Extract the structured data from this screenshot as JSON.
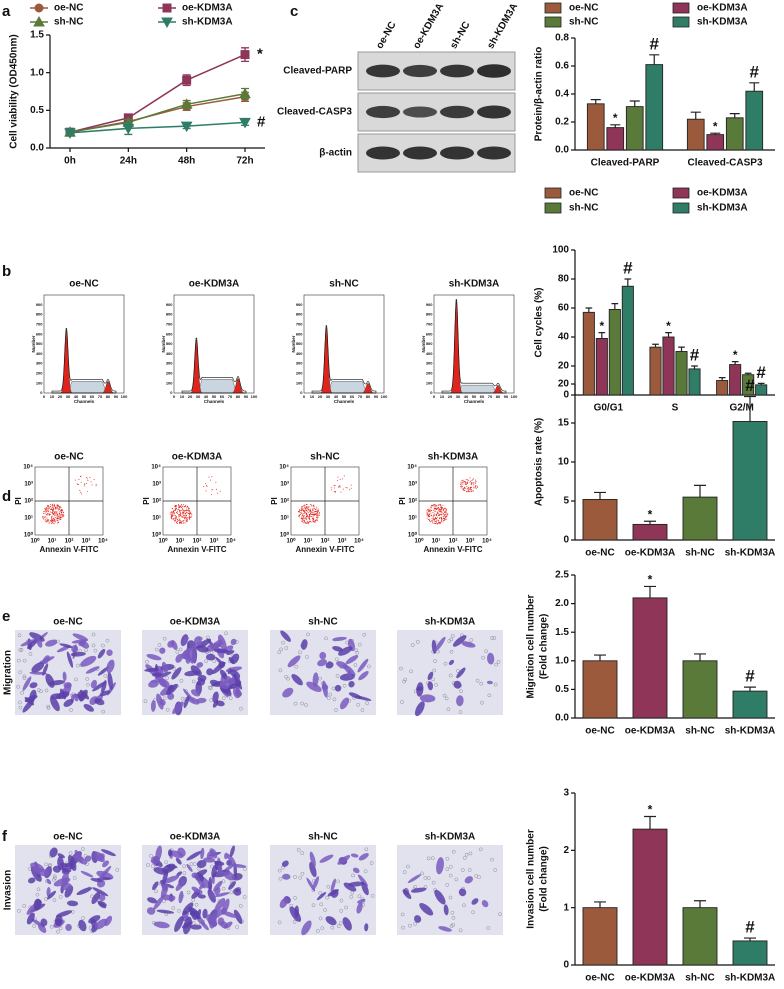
{
  "panel_labels": [
    "a",
    "b",
    "c",
    "d",
    "e",
    "f"
  ],
  "blot": {
    "lanes": [
      "oe-NC",
      "oe-KDM3A",
      "sh-NC",
      "sh-KDM3A"
    ],
    "rows": [
      "Cleaved-PARP",
      "Cleaved-CASP3",
      "β-actin"
    ]
  },
  "flow_histograms": {
    "titles": [
      "oe-NC",
      "oe-KDM3A",
      "sh-NC",
      "sh-KDM3A"
    ],
    "xlabel": "Channels",
    "ylabel": "Number",
    "xticks": [
      0,
      10,
      20,
      30,
      40,
      50,
      60,
      70,
      80,
      90,
      100
    ],
    "yticks": [
      0,
      100,
      200,
      300,
      400,
      500,
      600,
      700,
      800,
      900
    ]
  },
  "flow_scatter": {
    "titles": [
      "oe-NC",
      "oe-KDM3A",
      "sh-NC",
      "sh-KDM3A"
    ],
    "xlabel": "Annexin V-FITC",
    "ylabel": "PI",
    "ticks": [
      "10⁰",
      "10¹",
      "10²",
      "10³",
      "10⁴"
    ]
  },
  "transwell": [
    {
      "label": "Migration",
      "titles": [
        "oe-NC",
        "oe-KDM3A",
        "sh-NC",
        "sh-KDM3A"
      ]
    },
    {
      "label": "Invasion",
      "titles": [
        "oe-NC",
        "oe-KDM3A",
        "sh-NC",
        "sh-KDM3A"
      ]
    }
  ],
  "chart_data": [
    {
      "type": "line",
      "ylabel": "Cell viability (OD450nm)",
      "categories": [
        "0h",
        "24h",
        "48h",
        "72h"
      ],
      "ylim": [
        0,
        1.5
      ],
      "yticks": [
        {
          "value": 0,
          "label": "0.0"
        },
        0.5,
        {
          "value": 1,
          "label": "1.0"
        },
        1.5
      ],
      "series": [
        {
          "name": "oe-NC",
          "color": "#9c5a3c",
          "marker": "circle",
          "values": [
            0.21,
            0.35,
            0.55,
            0.68
          ],
          "errors": [
            0.03,
            0.04,
            0.05,
            0.06
          ]
        },
        {
          "name": "oe-KDM3A",
          "color": "#8e3558",
          "marker": "square",
          "values": [
            0.21,
            0.4,
            0.9,
            1.24
          ],
          "errors": [
            0.03,
            0.04,
            0.07,
            0.09
          ],
          "significance": [
            null,
            null,
            null,
            "*"
          ]
        },
        {
          "name": "sh-NC",
          "color": "#5a7a3a",
          "marker": "triangle",
          "values": [
            0.21,
            0.34,
            0.58,
            0.72
          ],
          "errors": [
            0.03,
            0.04,
            0.05,
            0.07
          ]
        },
        {
          "name": "sh-KDM3A",
          "color": "#2f7c67",
          "marker": "triangle-down",
          "values": [
            0.2,
            0.26,
            0.29,
            0.34
          ],
          "errors": [
            0.03,
            0.08,
            0.03,
            0.04
          ],
          "significance": [
            null,
            null,
            null,
            "#"
          ]
        }
      ]
    },
    {
      "type": "bar",
      "ylabel": "Protein/β-actin ratio",
      "categories": [
        "Cleaved-PARP",
        "Cleaved-CASP3"
      ],
      "ylim": [
        0,
        0.8
      ],
      "yticks": [
        {
          "value": 0,
          "label": "0.0"
        },
        0.2,
        0.4,
        0.6,
        0.8
      ],
      "series": [
        {
          "name": "oe-NC",
          "color": "#9c5a3c",
          "values": [
            0.33,
            0.22
          ],
          "errors": [
            0.03,
            0.05
          ]
        },
        {
          "name": "oe-KDM3A",
          "color": "#8e3558",
          "values": [
            0.16,
            0.11
          ],
          "errors": [
            0.02,
            0.01
          ],
          "significance": [
            "*",
            "*"
          ]
        },
        {
          "name": "sh-NC",
          "color": "#5a7a3a",
          "values": [
            0.31,
            0.23
          ],
          "errors": [
            0.04,
            0.03
          ]
        },
        {
          "name": "sh-KDM3A",
          "color": "#2f7c67",
          "values": [
            0.61,
            0.42
          ],
          "errors": [
            0.07,
            0.06
          ],
          "significance": [
            "#",
            "#"
          ]
        }
      ]
    },
    {
      "type": "bar",
      "ylabel": "Cell cycles (%)",
      "categories": [
        "G0/G1",
        "S",
        "G2/M"
      ],
      "ylim": [
        0,
        100
      ],
      "yticks": [
        0,
        20,
        40,
        60,
        80,
        100
      ],
      "series": [
        {
          "name": "oe-NC",
          "color": "#9c5a3c",
          "values": [
            57,
            33,
            10
          ],
          "errors": [
            3,
            2,
            2
          ]
        },
        {
          "name": "oe-KDM3A",
          "color": "#8e3558",
          "values": [
            39,
            40,
            21
          ],
          "errors": [
            4,
            3,
            2
          ],
          "significance": [
            "*",
            "*",
            "*"
          ]
        },
        {
          "name": "sh-NC",
          "color": "#5a7a3a",
          "values": [
            59,
            30,
            14
          ],
          "errors": [
            4,
            3,
            1
          ]
        },
        {
          "name": "sh-KDM3A",
          "color": "#2f7c67",
          "values": [
            75,
            18,
            7
          ],
          "errors": [
            5,
            2,
            1
          ],
          "significance": [
            "#",
            "#",
            "#"
          ]
        }
      ]
    },
    {
      "type": "bar",
      "ylabel": "Apoptosis rate (%)",
      "categories": [
        "oe-NC",
        "oe-KDM3A",
        "sh-NC",
        "sh-KDM3A"
      ],
      "values": [
        5.2,
        2.0,
        5.5,
        15.2
      ],
      "errors": [
        0.9,
        0.4,
        1.5,
        3.2
      ],
      "significance": [
        null,
        "*",
        null,
        "#"
      ],
      "colors": [
        "#9c5a3c",
        "#8e3558",
        "#5a7a3a",
        "#2f7c67"
      ],
      "ylim": [
        0,
        20
      ],
      "yticks": [
        0,
        5,
        10,
        15,
        20
      ]
    },
    {
      "type": "bar",
      "ylabel": [
        "Migration cell number",
        "(Fold change)"
      ],
      "categories": [
        "oe-NC",
        "oe-KDM3A",
        "sh-NC",
        "sh-KDM3A"
      ],
      "values": [
        1.0,
        2.1,
        1.0,
        0.47
      ],
      "errors": [
        0.1,
        0.2,
        0.12,
        0.07
      ],
      "significance": [
        null,
        "*",
        null,
        "#"
      ],
      "colors": [
        "#9c5a3c",
        "#8e3558",
        "#5a7a3a",
        "#2f7c67"
      ],
      "ylim": [
        0,
        2.5
      ],
      "yticks": [
        {
          "value": 0,
          "label": "0.0"
        },
        0.5,
        {
          "value": 1,
          "label": "1.0"
        },
        1.5,
        {
          "value": 2,
          "label": "2.0"
        },
        2.5
      ]
    },
    {
      "type": "bar",
      "ylabel": [
        "Invasion cell number",
        "(Fold change)"
      ],
      "categories": [
        "oe-NC",
        "oe-KDM3A",
        "sh-NC",
        "sh-KDM3A"
      ],
      "values": [
        1.0,
        2.37,
        1.0,
        0.42
      ],
      "errors": [
        0.1,
        0.22,
        0.12,
        0.05
      ],
      "significance": [
        null,
        "*",
        null,
        "#"
      ],
      "colors": [
        "#9c5a3c",
        "#8e3558",
        "#5a7a3a",
        "#2f7c67"
      ],
      "ylim": [
        0,
        3
      ],
      "yticks": [
        0,
        1,
        2,
        3
      ]
    }
  ]
}
